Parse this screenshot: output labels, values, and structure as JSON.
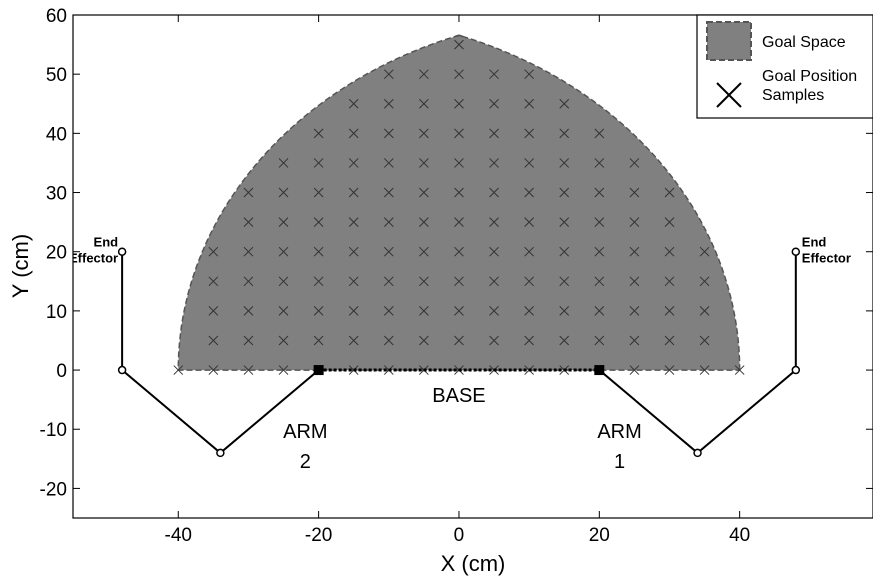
{
  "chart_data": {
    "type": "scatter",
    "xlabel": "X (cm)",
    "ylabel": "Y (cm)",
    "xlim": [
      -55,
      59
    ],
    "ylim": [
      -25,
      60
    ],
    "xticks": [
      -40,
      -20,
      0,
      20,
      40
    ],
    "yticks": [
      -20,
      -10,
      0,
      10,
      20,
      30,
      40,
      50,
      60
    ],
    "grid": false,
    "colors": {
      "goal_space_fill": "#808080",
      "goal_space_edge": "#555555",
      "sample_marker": "#333333",
      "arm_line": "#000000"
    },
    "legend": {
      "placement": "top-right",
      "entries": [
        {
          "label": "Goal Space",
          "marker": "shaded-square"
        },
        {
          "label_lines": [
            "Goal Position",
            "Samples"
          ],
          "marker": "x"
        }
      ]
    },
    "goal_space_boundary": {
      "left_arc": {
        "center": [
          20,
          0
        ],
        "radius": 60,
        "from_deg": 110,
        "to_deg": 180
      },
      "right_arc": {
        "center": [
          -20,
          0
        ],
        "radius": 60,
        "from_deg": 0,
        "to_deg": 70
      },
      "arc_peak": 60
    },
    "goal_position_samples": {
      "x_step": 5,
      "y_step": 5,
      "points_note": "grid of samples inside the goal space"
    },
    "base": {
      "label": "BASE",
      "from": [
        -20,
        0
      ],
      "to": [
        20,
        0
      ]
    },
    "arms": [
      {
        "label_lines": [
          "ARM",
          "1"
        ],
        "joints": [
          [
            20,
            0
          ],
          [
            34,
            -14
          ],
          [
            48,
            0
          ],
          [
            48,
            20
          ]
        ],
        "end_effector_label_lines": [
          "End",
          "Effector"
        ]
      },
      {
        "label_lines": [
          "ARM",
          "2"
        ],
        "joints": [
          [
            -20,
            0
          ],
          [
            -34,
            -14
          ],
          [
            -48,
            0
          ],
          [
            -48,
            20
          ]
        ],
        "end_effector_label_lines": [
          "End",
          "Effector"
        ]
      }
    ]
  }
}
